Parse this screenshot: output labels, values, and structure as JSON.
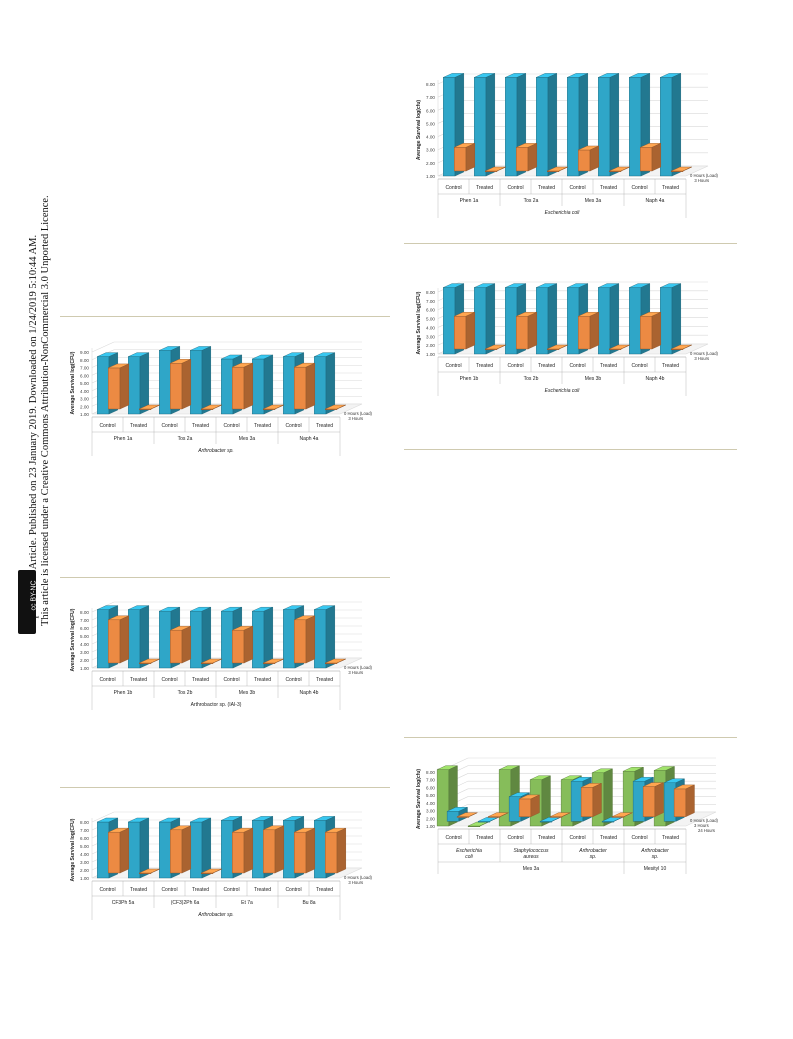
{
  "sidebar": {
    "line1": "Open Access Article. Published on 23 January 2019. Downloaded on 1/24/2019 5:10:44 AM.",
    "line2": "This article is licensed under a Creative Commons Attribution-NonCommercial 3.0 Unported Licence.",
    "badge": "cc BY-NC"
  },
  "colors": {
    "control": "#ec8a43",
    "treated": "#2fa6c8",
    "green": "#86bd5a",
    "grid": "#d9d9d9"
  },
  "chart_data": [
    {
      "id": "ecoli_a",
      "type": "bar",
      "ylabel": "Average Survival log(cfu)",
      "yticks": [
        "1.00",
        "2.00",
        "3.00",
        "4.00",
        "5.00",
        "6.00",
        "7.00",
        "8.00"
      ],
      "ylim": [
        1,
        8
      ],
      "categories": [
        "Control",
        "Treated",
        "Control",
        "Treated",
        "Control",
        "Treated",
        "Control",
        "Treated"
      ],
      "groups": [
        "Phen 1a",
        "Tos 2a",
        "Mes 3a",
        "Naph 4a"
      ],
      "organism": "Escherichia coli",
      "series": [
        {
          "name": "0 Hours (Load)",
          "values": [
            8.5,
            8.5,
            8.5,
            8.5,
            8.5,
            8.5,
            8.5,
            8.5
          ]
        },
        {
          "name": "3 Hours",
          "values": [
            2.8,
            1.0,
            2.8,
            1.0,
            2.6,
            1.0,
            2.8,
            1.0
          ]
        }
      ]
    },
    {
      "id": "ecoli_b",
      "type": "bar",
      "ylabel": "Average Survival log(CFU)",
      "yticks": [
        "1.00",
        "2.00",
        "3.00",
        "4.00",
        "5.00",
        "6.00",
        "7.00",
        "8.00"
      ],
      "ylim": [
        1,
        8
      ],
      "categories": [
        "Control",
        "Treated",
        "Control",
        "Treated",
        "Control",
        "Treated",
        "Control",
        "Treated"
      ],
      "groups": [
        "Phen 1b",
        "Tos 2b",
        "Mes 3b",
        "Naph 4b"
      ],
      "organism": "Escherichia coli",
      "series": [
        {
          "name": "0 Hours (Load)",
          "values": [
            8.5,
            8.5,
            8.5,
            8.5,
            8.5,
            8.5,
            8.5,
            8.5
          ]
        },
        {
          "name": "3 Hours",
          "values": [
            4.7,
            1.0,
            4.7,
            1.0,
            4.7,
            1.0,
            4.7,
            1.0
          ]
        }
      ]
    },
    {
      "id": "arthro_a",
      "type": "bar",
      "ylabel": "Average Survival log(CFU)",
      "yticks": [
        "1.00",
        "2.00",
        "3.00",
        "4.00",
        "5.00",
        "6.00",
        "7.00",
        "8.00",
        "9.00"
      ],
      "ylim": [
        1,
        9
      ],
      "categories": [
        "Control",
        "Treated",
        "Control",
        "Treated",
        "Control",
        "Treated",
        "Control",
        "Treated"
      ],
      "groups": [
        "Phen 1a",
        "Tos 2a",
        "Mes 3a",
        "Naph 4a"
      ],
      "organism": "Arthrobacter sp.",
      "series": [
        {
          "name": "0 Hours (Load)",
          "values": [
            8.4,
            8.4,
            9.2,
            9.2,
            8.1,
            8.1,
            8.4,
            8.4
          ]
        },
        {
          "name": "3 Hours",
          "values": [
            6.3,
            1.0,
            6.9,
            1.0,
            6.4,
            1.0,
            6.4,
            1.0
          ]
        }
      ]
    },
    {
      "id": "arthro_b",
      "type": "bar",
      "ylabel": "Average Survival log(CFU)",
      "yticks": [
        "1.00",
        "2.00",
        "3.00",
        "4.00",
        "5.00",
        "6.00",
        "7.00",
        "8.00"
      ],
      "ylim": [
        1,
        8
      ],
      "categories": [
        "Control",
        "Treated",
        "Control",
        "Treated",
        "Control",
        "Treated",
        "Control",
        "Treated"
      ],
      "groups": [
        "Phen 1b",
        "Tos 2b",
        "Mes 3b",
        "Naph 4b"
      ],
      "organism": "Arthrobactor sp. (IAI-3)",
      "series": [
        {
          "name": "0 Hours (Load)",
          "values": [
            8.3,
            8.3,
            8.1,
            8.1,
            8.1,
            8.1,
            8.3,
            8.3
          ]
        },
        {
          "name": "3 Hours",
          "values": [
            6.4,
            1.0,
            5.1,
            1.0,
            5.1,
            1.0,
            6.4,
            1.0
          ]
        }
      ]
    },
    {
      "id": "arthro_c",
      "type": "bar",
      "ylabel": "Average Survival log(CFU)",
      "yticks": [
        "1.00",
        "2.00",
        "3.00",
        "4.00",
        "5.00",
        "6.00",
        "7.00",
        "8.00"
      ],
      "ylim": [
        1,
        8
      ],
      "categories": [
        "Control",
        "Treated",
        "Control",
        "Treated",
        "Control",
        "Treated",
        "Control",
        "Treated"
      ],
      "groups": [
        "CF3Ph 5a",
        "(CF3)2Ph 6a",
        "Et 7a",
        "Bu 8a"
      ],
      "organism": "Arthrobacter sp.",
      "series": [
        {
          "name": "0 Hours (Load)",
          "values": [
            8.0,
            8.0,
            8.0,
            8.0,
            8.2,
            8.2,
            8.2,
            8.2
          ]
        },
        {
          "name": "3 Hours",
          "values": [
            6.1,
            1.0,
            6.4,
            1.0,
            6.1,
            6.4,
            6.1,
            6.1
          ]
        }
      ]
    },
    {
      "id": "mes",
      "type": "bar",
      "ylabel": "Average Survival log(cfu)",
      "yticks": [
        "1.00",
        "2.00",
        "3.00",
        "4.00",
        "5.00",
        "6.00",
        "7.00",
        "8.00"
      ],
      "ylim": [
        1,
        8
      ],
      "categories": [
        "Control",
        "Treated",
        "Control",
        "Treated",
        "Control",
        "Treated",
        "Control",
        "Treated"
      ],
      "groups": [
        "Escherichia coli",
        "Staphylococcus aureus",
        "Arthrobacter sp.",
        "Arthrobacter sp."
      ],
      "supergroups": [
        "Mes 3a",
        "Mesityl 10"
      ],
      "series": [
        {
          "name": "0 Hours (Load)",
          "values": [
            8.3,
            1.0,
            8.3,
            7.0,
            7.0,
            7.9,
            8.1,
            8.2
          ]
        },
        {
          "name": "3 Hours",
          "values": [
            2.3,
            1.0,
            4.2,
            1.0,
            6.2,
            1.0,
            6.2,
            6.0
          ]
        },
        {
          "name": "24 Hours",
          "values": [
            1.0,
            1.0,
            3.3,
            1.0,
            4.8,
            1.0,
            4.9,
            4.6
          ]
        }
      ]
    }
  ]
}
